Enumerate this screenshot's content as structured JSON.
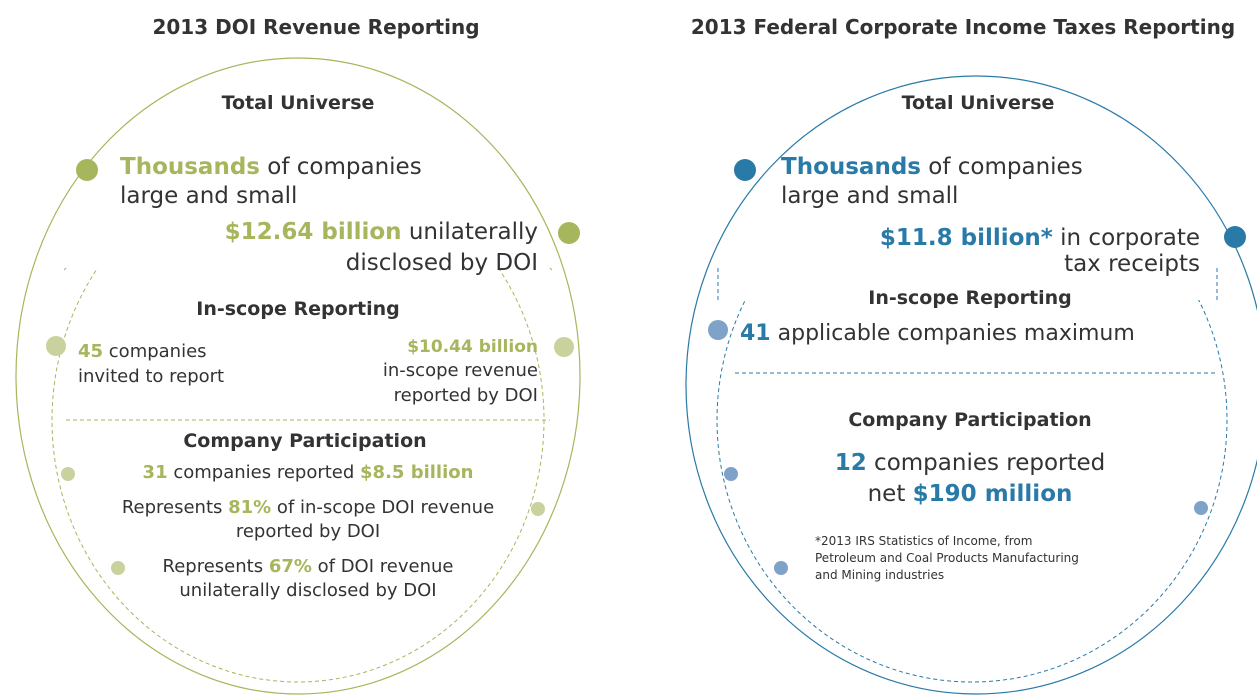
{
  "panels": [
    {
      "color": "#a6b65c",
      "light_color": "#c9d29c",
      "lines": [
        [
          {
            "text": "2013 DOI Revenue Reporting",
            "style": "heading"
          }
        ],
        [
          {
            "text": "Total Universe",
            "style": "heading"
          }
        ],
        [
          {
            "text": "Thousands",
            "style": "highlight"
          },
          {
            "text": " of companies"
          }
        ],
        [
          {
            "text": "large and small"
          }
        ],
        [
          {
            "text": "$12.64 billion",
            "style": "highlight"
          },
          {
            "text": " unilaterally"
          }
        ],
        [
          {
            "text": "disclosed by DOI"
          }
        ],
        [
          {
            "text": "In-scope Reporting",
            "style": "heading"
          }
        ],
        [
          {
            "text": "45",
            "style": "highlight"
          },
          {
            "text": " companies"
          }
        ],
        [
          {
            "text": "invited to report"
          }
        ],
        [
          {
            "text": "$10.44 billion",
            "style": "highlight"
          }
        ],
        [
          {
            "text": "in-scope revenue"
          }
        ],
        [
          {
            "text": "reported by DOI"
          }
        ],
        [
          {
            "text": "Company Participation",
            "style": "heading"
          }
        ],
        [
          {
            "text": "31",
            "style": "highlight"
          },
          {
            "text": " companies reported "
          },
          {
            "text": "$8.5 billion",
            "style": "highlight"
          }
        ],
        [
          {
            "text": "Represents "
          },
          {
            "text": "81%",
            "style": "highlight"
          },
          {
            "text": " of in-scope DOI revenue"
          }
        ],
        [
          {
            "text": "reported by DOI"
          }
        ],
        [
          {
            "text": "Represents "
          },
          {
            "text": "67%",
            "style": "highlight"
          },
          {
            "text": " of DOI revenue"
          }
        ],
        [
          {
            "text": "unilaterally disclosed by DOI"
          }
        ]
      ]
    },
    {
      "color": "#2a7aa8",
      "light_color": "#7fa2c9",
      "lines": [
        [
          {
            "text": "2013 Federal Corporate Income Taxes Reporting",
            "style": "heading"
          }
        ],
        [
          {
            "text": "Total Universe",
            "style": "heading"
          }
        ],
        [
          {
            "text": "Thousands",
            "style": "highlight"
          },
          {
            "text": " of companies"
          }
        ],
        [
          {
            "text": "large and small"
          }
        ],
        [
          {
            "text": "$11.8 billion*",
            "style": "highlight"
          },
          {
            "text": " in corporate"
          }
        ],
        [
          {
            "text": "tax receipts"
          }
        ],
        [
          {
            "text": "In-scope Reporting",
            "style": "heading"
          }
        ],
        [
          {
            "text": "41",
            "style": "highlight"
          },
          {
            "text": " applicable companies maximum"
          }
        ],
        [
          {
            "text": "Company Participation",
            "style": "heading"
          }
        ],
        [
          {
            "text": "12",
            "style": "highlight"
          },
          {
            "text": " companies reported"
          }
        ],
        [
          {
            "text": "net "
          },
          {
            "text": "$190 million",
            "style": "highlight"
          }
        ],
        [
          {
            "text": "*2013 IRS Statistics of Income, from",
            "style": "note"
          }
        ],
        [
          {
            "text": "Petroleum and Coal Products Manufacturing",
            "style": "note"
          }
        ],
        [
          {
            "text": "and Mining industries",
            "style": "note"
          }
        ]
      ]
    }
  ]
}
